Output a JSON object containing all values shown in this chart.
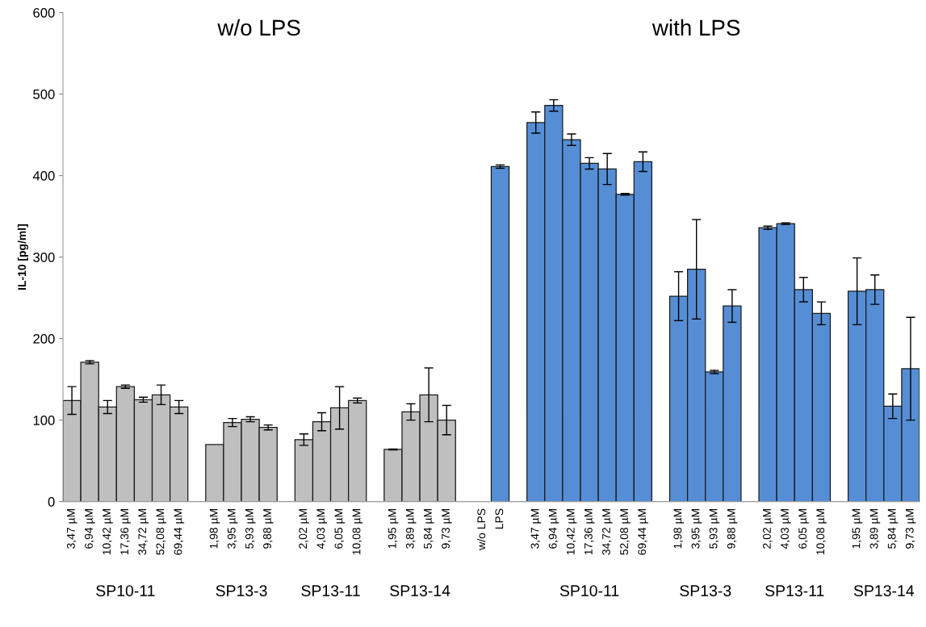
{
  "chart_data": {
    "type": "bar",
    "ylabel": "IL-10 [pg/ml]",
    "categories": [
      "3,47 µM",
      "6,94 µM",
      "10,42 µM",
      "17,36 µM",
      "34,72 µM",
      "52,08 µM",
      "69,44 µM",
      null,
      "1,98 µM",
      "3,95 µM",
      "5,93 µM",
      "9,88 µM",
      null,
      "2,02 µM",
      "4,03 µM",
      "6,05 µM",
      "10,08 µM",
      null,
      "1,95 µM",
      "3,89 µM",
      "5,84 µM",
      "9,73 µM",
      null,
      "w/o LPS",
      "LPS",
      null,
      "3,47 µM",
      "6,94 µM",
      "10,42 µM",
      "17,36 µM",
      "34,72 µM",
      "52,08 µM",
      "69,44 µM",
      null,
      "1,98 µM",
      "3,95 µM",
      "5,93 µM",
      "9,88 µM",
      null,
      "2,02 µM",
      "4,03 µM",
      "6,05 µM",
      "10,08 µM",
      null,
      "1,95 µM",
      "3,89 µM",
      "5,84 µM",
      "9,73 µM"
    ],
    "values": [
      124,
      171,
      116,
      141,
      125,
      131,
      116,
      null,
      70,
      97,
      101,
      91,
      null,
      76,
      98,
      115,
      124,
      null,
      64,
      110,
      131,
      100,
      null,
      null,
      411,
      null,
      465,
      486,
      444,
      415,
      408,
      377,
      417,
      null,
      252,
      285,
      159,
      240,
      null,
      336,
      341,
      260,
      231,
      null,
      258,
      260,
      117,
      163
    ],
    "errors": [
      17,
      2,
      8,
      2,
      3,
      12,
      8,
      null,
      null,
      5,
      3,
      3,
      null,
      7,
      11,
      26,
      3,
      null,
      0.5,
      10,
      33,
      18,
      null,
      null,
      2,
      null,
      13,
      7,
      7,
      7,
      19,
      1,
      12,
      null,
      30,
      61,
      2,
      20,
      null,
      2,
      1,
      15,
      14,
      null,
      41,
      18,
      15,
      63
    ],
    "colors": [
      "#bfbfbf",
      "#bfbfbf",
      "#bfbfbf",
      "#bfbfbf",
      "#bfbfbf",
      "#bfbfbf",
      "#bfbfbf",
      null,
      "#bfbfbf",
      "#bfbfbf",
      "#bfbfbf",
      "#bfbfbf",
      null,
      "#bfbfbf",
      "#bfbfbf",
      "#bfbfbf",
      "#bfbfbf",
      null,
      "#bfbfbf",
      "#bfbfbf",
      "#bfbfbf",
      "#bfbfbf",
      null,
      "#558ed5",
      "#558ed5",
      null,
      "#558ed5",
      "#558ed5",
      "#558ed5",
      "#558ed5",
      "#558ed5",
      "#558ed5",
      "#558ed5",
      null,
      "#558ed5",
      "#558ed5",
      "#558ed5",
      "#558ed5",
      null,
      "#558ed5",
      "#558ed5",
      "#558ed5",
      "#558ed5",
      null,
      "#558ed5",
      "#558ed5",
      "#558ed5",
      "#558ed5"
    ],
    "ylim": [
      0,
      600
    ],
    "yticks": [
      0,
      100,
      200,
      300,
      400,
      500,
      600
    ],
    "grid": false,
    "legend": false,
    "annotations": [
      "w/o LPS",
      "with LPS",
      "SP10-11",
      "SP13-3",
      "SP13-11",
      "SP13-14",
      "SP10-11",
      "SP13-3",
      "SP13-11",
      "SP13-14"
    ]
  }
}
